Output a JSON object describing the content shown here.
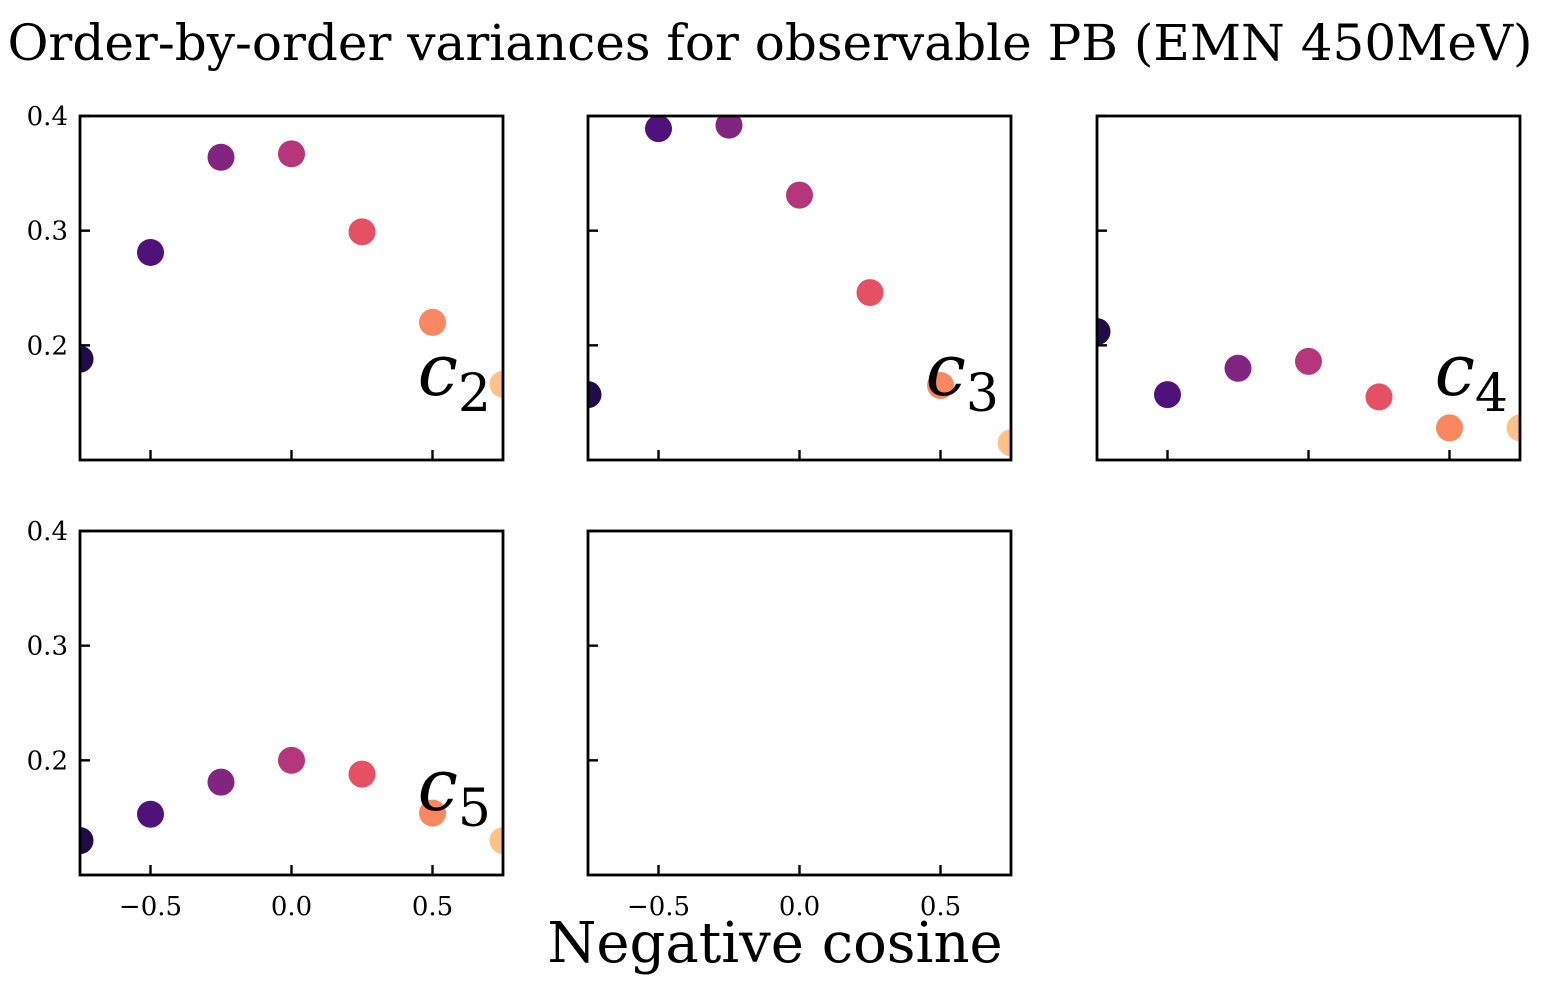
{
  "figure": {
    "title": "Order-by-order variances for observable PB (EMN 450MeV)",
    "xlabel": "Negative cosine"
  },
  "chart_data": [
    {
      "type": "scatter",
      "panel_label": "c",
      "panel_sub": "2",
      "x": [
        -0.75,
        -0.5,
        -0.25,
        0.0,
        0.25,
        0.5,
        0.75
      ],
      "y": [
        0.188,
        0.281,
        0.364,
        0.367,
        0.299,
        0.22,
        0.166
      ],
      "xlim": [
        -0.75,
        0.75
      ],
      "ylim": [
        0.1,
        0.4
      ],
      "xticks": [],
      "yticks": [
        "0.2",
        "0.3",
        "0.4"
      ],
      "point_colors": [
        "#1f0c48",
        "#4f127b",
        "#812581",
        "#b5367a",
        "#e55064",
        "#fb8761",
        "#fec287"
      ]
    },
    {
      "type": "scatter",
      "panel_label": "c",
      "panel_sub": "3",
      "x": [
        -0.75,
        -0.5,
        -0.25,
        0.0,
        0.25,
        0.5,
        0.75
      ],
      "y": [
        0.157,
        0.389,
        0.392,
        0.331,
        0.246,
        0.165,
        0.115
      ],
      "xlim": [
        -0.75,
        0.75
      ],
      "ylim": [
        0.1,
        0.4
      ],
      "xticks": [],
      "yticks": [],
      "point_colors": [
        "#1f0c48",
        "#4f127b",
        "#812581",
        "#b5367a",
        "#e55064",
        "#fb8761",
        "#fec287"
      ]
    },
    {
      "type": "scatter",
      "panel_label": "c",
      "panel_sub": "4",
      "x": [
        -0.75,
        -0.5,
        -0.25,
        0.0,
        0.25,
        0.5,
        0.75
      ],
      "y": [
        0.212,
        0.157,
        0.18,
        0.186,
        0.155,
        0.128,
        0.128
      ],
      "xlim": [
        -0.75,
        0.75
      ],
      "ylim": [
        0.1,
        0.4
      ],
      "xticks": [],
      "yticks": [],
      "point_colors": [
        "#1f0c48",
        "#4f127b",
        "#812581",
        "#b5367a",
        "#e55064",
        "#fb8761",
        "#fec287"
      ]
    },
    {
      "type": "scatter",
      "panel_label": "c",
      "panel_sub": "5",
      "x": [
        -0.75,
        -0.5,
        -0.25,
        0.0,
        0.25,
        0.5,
        0.75
      ],
      "y": [
        0.13,
        0.153,
        0.181,
        0.2,
        0.188,
        0.154,
        0.13
      ],
      "xlim": [
        -0.75,
        0.75
      ],
      "ylim": [
        0.1,
        0.4
      ],
      "xticks": [
        "−0.5",
        "0.0",
        "0.5"
      ],
      "yticks": [
        "0.2",
        "0.3",
        "0.4"
      ],
      "point_colors": [
        "#1f0c48",
        "#4f127b",
        "#812581",
        "#b5367a",
        "#e55064",
        "#fb8761",
        "#fec287"
      ]
    },
    {
      "type": "scatter",
      "panel_label": "",
      "panel_sub": "",
      "x": [],
      "y": [],
      "xlim": [
        -0.75,
        0.75
      ],
      "ylim": [
        0.1,
        0.4
      ],
      "xticks": [
        "−0.5",
        "0.0",
        "0.5"
      ],
      "yticks": [],
      "point_colors": []
    }
  ]
}
